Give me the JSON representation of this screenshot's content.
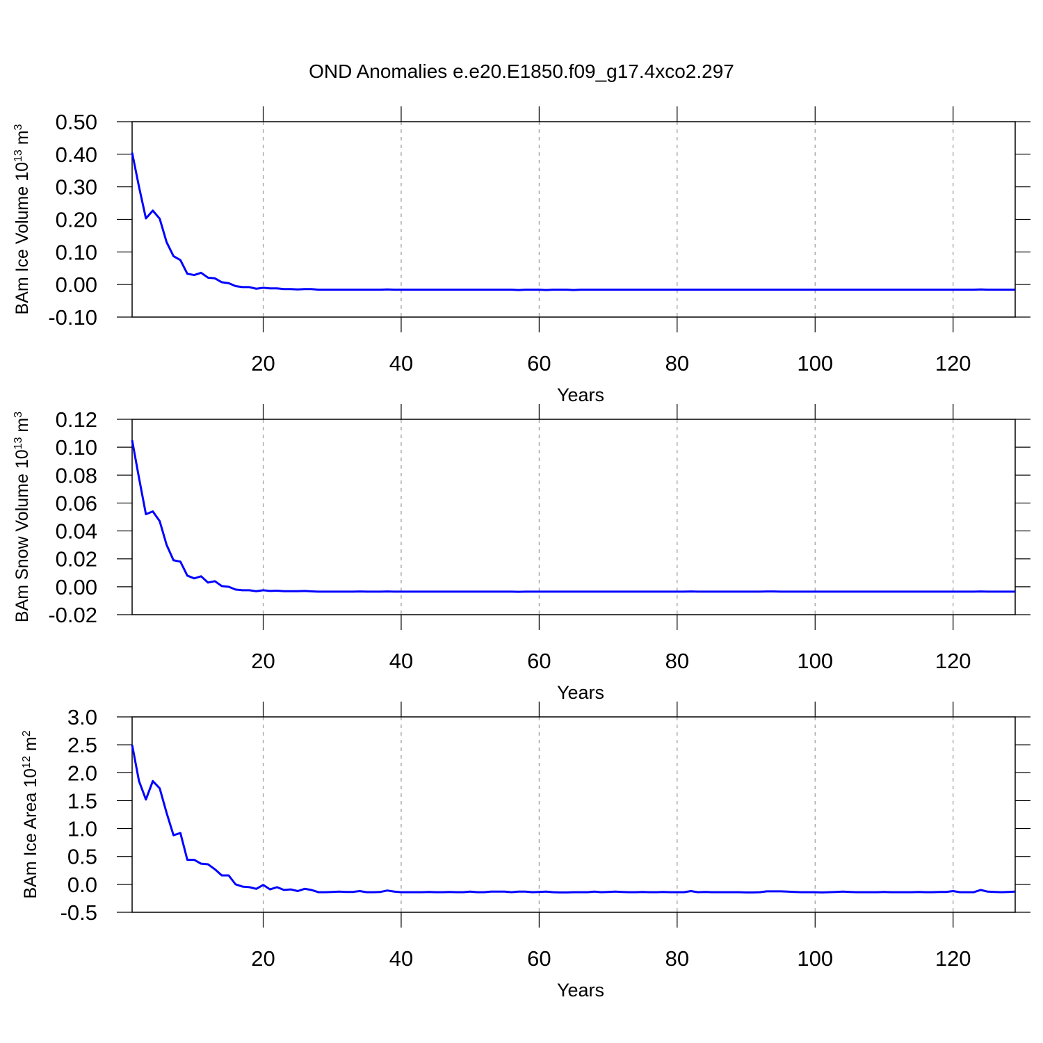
{
  "title": "OND Anomalies e.e20.E1850.f09_g17.4xco2.297",
  "chart_data": [
    {
      "type": "line",
      "xlabel": "Years",
      "ylabel_parts": [
        "BAm Ice Volume 10",
        "13",
        " m",
        "3"
      ],
      "color": "#0000ff",
      "xgrid": true,
      "xlim": [
        1,
        129
      ],
      "xticks": [
        20,
        40,
        60,
        80,
        100,
        120
      ],
      "ylim": [
        -0.1,
        0.5
      ],
      "yticks": [
        {
          "value": 0.5,
          "label": "0.50"
        },
        {
          "value": 0.4,
          "label": "0.40"
        },
        {
          "value": 0.3,
          "label": "0.30"
        },
        {
          "value": 0.2,
          "label": "0.20"
        },
        {
          "value": 0.1,
          "label": "0.10"
        },
        {
          "value": 0,
          "label": "0.00"
        },
        {
          "value": -0.1,
          "label": "-0.10"
        }
      ],
      "x": [
        1,
        2,
        3,
        4,
        5,
        6,
        7,
        8,
        9,
        10,
        11,
        12,
        13,
        14,
        15,
        16,
        17,
        18,
        19,
        20,
        21,
        22,
        23,
        24,
        25,
        26,
        27,
        28,
        29,
        30,
        31,
        32,
        33,
        34,
        35,
        36,
        37,
        38,
        39,
        40,
        41,
        42,
        43,
        44,
        45,
        46,
        47,
        48,
        49,
        50,
        51,
        52,
        53,
        54,
        55,
        56,
        57,
        58,
        59,
        60,
        61,
        62,
        63,
        64,
        65,
        66,
        67,
        68,
        69,
        70,
        71,
        72,
        73,
        74,
        75,
        76,
        77,
        78,
        79,
        80,
        81,
        82,
        83,
        84,
        85,
        86,
        87,
        88,
        89,
        90,
        91,
        92,
        93,
        94,
        95,
        96,
        97,
        98,
        99,
        100,
        101,
        102,
        103,
        104,
        105,
        106,
        107,
        108,
        109,
        110,
        111,
        112,
        113,
        114,
        115,
        116,
        117,
        118,
        119,
        120,
        121,
        122,
        123,
        124,
        125,
        126,
        127,
        128,
        129
      ],
      "values": [
        0.405,
        0.3,
        0.203,
        0.227,
        0.202,
        0.13,
        0.087,
        0.075,
        0.033,
        0.029,
        0.036,
        0.021,
        0.019,
        0.007,
        0.004,
        -0.005,
        -0.008,
        -0.008,
        -0.013,
        -0.01,
        -0.012,
        -0.012,
        -0.014,
        -0.014,
        -0.015,
        -0.014,
        -0.014,
        -0.016,
        -0.016,
        -0.016,
        -0.016,
        -0.016,
        -0.016,
        -0.016,
        -0.016,
        -0.016,
        -0.016,
        -0.015,
        -0.016,
        -0.016,
        -0.016,
        -0.016,
        -0.016,
        -0.016,
        -0.016,
        -0.016,
        -0.016,
        -0.016,
        -0.016,
        -0.016,
        -0.016,
        -0.016,
        -0.016,
        -0.016,
        -0.016,
        -0.016,
        -0.017,
        -0.016,
        -0.016,
        -0.016,
        -0.017,
        -0.016,
        -0.016,
        -0.016,
        -0.017,
        -0.016,
        -0.016,
        -0.016,
        -0.016,
        -0.016,
        -0.016,
        -0.016,
        -0.016,
        -0.016,
        -0.016,
        -0.016,
        -0.016,
        -0.016,
        -0.016,
        -0.016,
        -0.016,
        -0.016,
        -0.016,
        -0.016,
        -0.016,
        -0.016,
        -0.016,
        -0.016,
        -0.016,
        -0.016,
        -0.016,
        -0.016,
        -0.016,
        -0.016,
        -0.016,
        -0.016,
        -0.016,
        -0.016,
        -0.016,
        -0.016,
        -0.016,
        -0.016,
        -0.016,
        -0.016,
        -0.016,
        -0.016,
        -0.016,
        -0.016,
        -0.016,
        -0.016,
        -0.016,
        -0.016,
        -0.016,
        -0.016,
        -0.016,
        -0.016,
        -0.016,
        -0.016,
        -0.016,
        -0.016,
        -0.016,
        -0.016,
        -0.016,
        -0.015,
        -0.016,
        -0.016,
        -0.016,
        -0.016,
        -0.016
      ]
    },
    {
      "type": "line",
      "xlabel": "Years",
      "ylabel_parts": [
        "BAm Snow Volume 10",
        "13",
        " m",
        "3"
      ],
      "color": "#0000ff",
      "xgrid": true,
      "xlim": [
        1,
        129
      ],
      "xticks": [
        20,
        40,
        60,
        80,
        100,
        120
      ],
      "ylim": [
        -0.02,
        0.12
      ],
      "yticks": [
        {
          "value": 0.12,
          "label": "0.12"
        },
        {
          "value": 0.1,
          "label": "0.10"
        },
        {
          "value": 0.08,
          "label": "0.08"
        },
        {
          "value": 0.06,
          "label": "0.06"
        },
        {
          "value": 0.04,
          "label": "0.04"
        },
        {
          "value": 0.02,
          "label": "0.02"
        },
        {
          "value": 0,
          "label": "0.00"
        },
        {
          "value": -0.02,
          "label": "-0.02"
        }
      ],
      "x": [
        1,
        2,
        3,
        4,
        5,
        6,
        7,
        8,
        9,
        10,
        11,
        12,
        13,
        14,
        15,
        16,
        17,
        18,
        19,
        20,
        21,
        22,
        23,
        24,
        25,
        26,
        27,
        28,
        29,
        30,
        31,
        32,
        33,
        34,
        35,
        36,
        37,
        38,
        39,
        40,
        41,
        42,
        43,
        44,
        45,
        46,
        47,
        48,
        49,
        50,
        51,
        52,
        53,
        54,
        55,
        56,
        57,
        58,
        59,
        60,
        61,
        62,
        63,
        64,
        65,
        66,
        67,
        68,
        69,
        70,
        71,
        72,
        73,
        74,
        75,
        76,
        77,
        78,
        79,
        80,
        81,
        82,
        83,
        84,
        85,
        86,
        87,
        88,
        89,
        90,
        91,
        92,
        93,
        94,
        95,
        96,
        97,
        98,
        99,
        100,
        101,
        102,
        103,
        104,
        105,
        106,
        107,
        108,
        109,
        110,
        111,
        112,
        113,
        114,
        115,
        116,
        117,
        118,
        119,
        120,
        121,
        122,
        123,
        124,
        125,
        126,
        127,
        128,
        129
      ],
      "values": [
        0.105,
        0.078,
        0.052,
        0.054,
        0.047,
        0.03,
        0.019,
        0.018,
        0.008,
        0.006,
        0.0075,
        0.003,
        0.004,
        0.0005,
        0.0,
        -0.002,
        -0.0025,
        -0.0025,
        -0.0032,
        -0.0025,
        -0.003,
        -0.0028,
        -0.0032,
        -0.0032,
        -0.0032,
        -0.003,
        -0.0033,
        -0.0035,
        -0.0035,
        -0.0035,
        -0.0035,
        -0.0035,
        -0.0035,
        -0.0034,
        -0.0035,
        -0.0035,
        -0.0035,
        -0.0034,
        -0.0035,
        -0.0035,
        -0.0035,
        -0.0035,
        -0.0035,
        -0.0035,
        -0.0035,
        -0.0035,
        -0.0035,
        -0.0035,
        -0.0035,
        -0.0035,
        -0.0035,
        -0.0035,
        -0.0035,
        -0.0035,
        -0.0035,
        -0.0035,
        -0.0036,
        -0.0035,
        -0.0035,
        -0.0035,
        -0.0035,
        -0.0035,
        -0.0035,
        -0.0035,
        -0.0035,
        -0.0035,
        -0.0035,
        -0.0035,
        -0.0035,
        -0.0035,
        -0.0035,
        -0.0035,
        -0.0035,
        -0.0035,
        -0.0035,
        -0.0035,
        -0.0035,
        -0.0035,
        -0.0035,
        -0.0035,
        -0.0035,
        -0.0034,
        -0.0035,
        -0.0035,
        -0.0035,
        -0.0035,
        -0.0035,
        -0.0035,
        -0.0035,
        -0.0035,
        -0.0035,
        -0.0035,
        -0.0034,
        -0.0034,
        -0.0035,
        -0.0035,
        -0.0035,
        -0.0035,
        -0.0035,
        -0.0035,
        -0.0035,
        -0.0035,
        -0.0035,
        -0.0035,
        -0.0035,
        -0.0035,
        -0.0035,
        -0.0035,
        -0.0035,
        -0.0035,
        -0.0035,
        -0.0035,
        -0.0035,
        -0.0035,
        -0.0035,
        -0.0035,
        -0.0035,
        -0.0035,
        -0.0035,
        -0.0035,
        -0.0035,
        -0.0035,
        -0.0035,
        -0.0034,
        -0.0035,
        -0.0035,
        -0.0035,
        -0.0035,
        -0.0035
      ]
    },
    {
      "type": "line",
      "xlabel": "Years",
      "ylabel_parts": [
        "BAm Ice Area 10",
        "12",
        " m",
        "2"
      ],
      "color": "#0000ff",
      "xgrid": true,
      "xlim": [
        1,
        129
      ],
      "xticks": [
        20,
        40,
        60,
        80,
        100,
        120
      ],
      "ylim": [
        -0.5,
        3.0
      ],
      "yticks": [
        {
          "value": 3,
          "label": "3.0"
        },
        2.5,
        {
          "value": 2,
          "label": "2.0"
        },
        1.5,
        {
          "value": 1,
          "label": "1.0"
        },
        0.5,
        {
          "value": 0,
          "label": "0.0"
        },
        -0.5
      ],
      "x": [
        1,
        2,
        3,
        4,
        5,
        6,
        7,
        8,
        9,
        10,
        11,
        12,
        13,
        14,
        15,
        16,
        17,
        18,
        19,
        20,
        21,
        22,
        23,
        24,
        25,
        26,
        27,
        28,
        29,
        30,
        31,
        32,
        33,
        34,
        35,
        36,
        37,
        38,
        39,
        40,
        41,
        42,
        43,
        44,
        45,
        46,
        47,
        48,
        49,
        50,
        51,
        52,
        53,
        54,
        55,
        56,
        57,
        58,
        59,
        60,
        61,
        62,
        63,
        64,
        65,
        66,
        67,
        68,
        69,
        70,
        71,
        72,
        73,
        74,
        75,
        76,
        77,
        78,
        79,
        80,
        81,
        82,
        83,
        84,
        85,
        86,
        87,
        88,
        89,
        90,
        91,
        92,
        93,
        94,
        95,
        96,
        97,
        98,
        99,
        100,
        101,
        102,
        103,
        104,
        105,
        106,
        107,
        108,
        109,
        110,
        111,
        112,
        113,
        114,
        115,
        116,
        117,
        118,
        119,
        120,
        121,
        122,
        123,
        124,
        125,
        126,
        127,
        128,
        129
      ],
      "values": [
        2.5,
        1.85,
        1.52,
        1.85,
        1.72,
        1.28,
        0.88,
        0.92,
        0.44,
        0.44,
        0.37,
        0.36,
        0.27,
        0.16,
        0.16,
        0.0,
        -0.04,
        -0.05,
        -0.08,
        -0.01,
        -0.09,
        -0.05,
        -0.1,
        -0.09,
        -0.12,
        -0.08,
        -0.1,
        -0.14,
        -0.14,
        -0.135,
        -0.13,
        -0.135,
        -0.135,
        -0.12,
        -0.14,
        -0.14,
        -0.135,
        -0.11,
        -0.13,
        -0.14,
        -0.14,
        -0.14,
        -0.14,
        -0.135,
        -0.14,
        -0.14,
        -0.135,
        -0.14,
        -0.14,
        -0.13,
        -0.14,
        -0.14,
        -0.13,
        -0.13,
        -0.13,
        -0.14,
        -0.13,
        -0.13,
        -0.14,
        -0.135,
        -0.13,
        -0.14,
        -0.145,
        -0.145,
        -0.14,
        -0.14,
        -0.14,
        -0.13,
        -0.14,
        -0.135,
        -0.13,
        -0.135,
        -0.14,
        -0.14,
        -0.135,
        -0.14,
        -0.14,
        -0.135,
        -0.14,
        -0.14,
        -0.14,
        -0.12,
        -0.14,
        -0.135,
        -0.14,
        -0.14,
        -0.14,
        -0.14,
        -0.14,
        -0.145,
        -0.145,
        -0.14,
        -0.125,
        -0.125,
        -0.125,
        -0.13,
        -0.135,
        -0.14,
        -0.14,
        -0.14,
        -0.145,
        -0.14,
        -0.135,
        -0.13,
        -0.135,
        -0.14,
        -0.14,
        -0.14,
        -0.14,
        -0.135,
        -0.14,
        -0.14,
        -0.14,
        -0.14,
        -0.135,
        -0.14,
        -0.14,
        -0.135,
        -0.135,
        -0.12,
        -0.14,
        -0.14,
        -0.14,
        -0.1,
        -0.13,
        -0.135,
        -0.14,
        -0.135,
        -0.13
      ]
    }
  ]
}
